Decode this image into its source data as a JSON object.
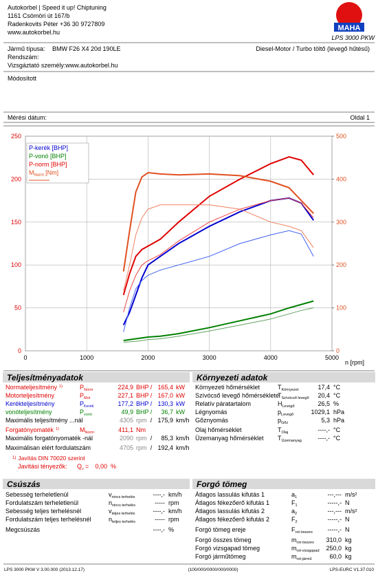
{
  "header": {
    "company": "Autokorbel | Speed it up! Chiptuning",
    "address": "1161 Csömöri út 167/b",
    "contact": "Radenkovits Péter +36 30 9727809",
    "web": "www.autokorbel.hu",
    "logo": "MAHA",
    "model": "LPS 3000 PKW"
  },
  "vehicle": {
    "type_label": "Jármű típusa:",
    "type": "BMW F26 X4 20d 190LE",
    "engine": "Diesel-Motor / Turbo töltő (levegő hűtésű)",
    "plate_label": "Rendszám:",
    "examiner": "Vizsgáztató személy:www.autokorbel.hu",
    "note": "Módosított",
    "date_label": "Mérési dátum:",
    "page": "Oldal 1"
  },
  "chart_data": {
    "type": "line",
    "x_label": "n [rpm]",
    "xlim": [
      0,
      5000
    ],
    "xticks": [
      0,
      1000,
      2000,
      3000,
      4000,
      5000
    ],
    "ylim": [
      0,
      250
    ],
    "yticks": [
      0,
      50,
      100,
      150,
      200,
      250
    ],
    "y2lim": [
      0,
      500
    ],
    "y2ticks": [
      0,
      100,
      200,
      300,
      400,
      500
    ],
    "ytick_color": "#e00000",
    "y2tick_color": "#e05020",
    "grid": true,
    "legend": "top-left",
    "x": [
      1600,
      1700,
      1800,
      1900,
      2000,
      2200,
      2500,
      3000,
      3500,
      4000,
      4300,
      4500,
      4700
    ],
    "series": [
      {
        "name": "P-kerék [BHP]",
        "color": "#0000d0",
        "width": 2,
        "values": [
          30,
          45,
          65,
          85,
          100,
          110,
          125,
          145,
          162,
          175,
          178,
          172,
          152
        ]
      },
      {
        "name": "P-vonó [BHP]",
        "color": "#008000",
        "width": 2,
        "values": [
          12,
          13,
          14,
          15,
          16,
          17,
          20,
          27,
          35,
          43,
          50,
          54,
          58
        ]
      },
      {
        "name": "P-norm [BHP]",
        "color": "#e00000",
        "width": 2,
        "values": [
          65,
          90,
          110,
          118,
          122,
          130,
          150,
          180,
          200,
          218,
          226,
          222,
          205
        ]
      },
      {
        "name": "M",
        "name_sub": "Norm",
        "name_unit": "[Nm]",
        "color": "#e05020",
        "width": 2,
        "axis": "y2",
        "values": [
          185,
          280,
          370,
          405,
          415,
          412,
          410,
          412,
          408,
          395,
          380,
          350,
          320
        ]
      },
      {
        "color": "#4060f0",
        "width": 1,
        "values": [
          22,
          50,
          72,
          82,
          88,
          94,
          100,
          110,
          125,
          135,
          140,
          136,
          110
        ]
      },
      {
        "color": "#60a060",
        "width": 1,
        "values": [
          10,
          10.5,
          11,
          12,
          13,
          14,
          17,
          23,
          30,
          37,
          43,
          47,
          50
        ]
      },
      {
        "color": "#f04040",
        "width": 1,
        "values": [
          45,
          70,
          88,
          100,
          105,
          112,
          128,
          150,
          165,
          175,
          178,
          172,
          155
        ]
      },
      {
        "color": "#f08060",
        "width": 1,
        "axis": "y2",
        "values": [
          140,
          200,
          270,
          310,
          330,
          340,
          340,
          340,
          330,
          300,
          290,
          280,
          240
        ]
      }
    ]
  },
  "performance": {
    "title": "Teljesítményadatok",
    "rows": [
      {
        "label": "Normateljesítmény",
        "note": "1)",
        "sym": "P",
        "sub": "Norm",
        "val": "224,9",
        "unit": "BHP",
        "sep": "/",
        "val2": "165,4",
        "unit2": "kW",
        "color": "#e00000"
      },
      {
        "label": "Motorteljesítmény",
        "sym": "P",
        "sub": "Mot",
        "val": "227,1",
        "unit": "BHP",
        "sep": "/",
        "val2": "167,0",
        "unit2": "kW",
        "color": "#e00000"
      },
      {
        "label": "Kerékteljesítmény",
        "sym": "P",
        "sub": "Kerék",
        "val": "177,2",
        "unit": "BHP",
        "sep": "/",
        "val2": "130,3",
        "unit2": "kW",
        "color": "#0000d0"
      },
      {
        "label": "vonóteljesítmény",
        "sym": "P",
        "sub": "vonó",
        "val": "49,9",
        "unit": "BHP",
        "sep": "/",
        "val2": "36,7",
        "unit2": "kW",
        "color": "#008000"
      },
      {
        "label": "Maximális teljesítmény ...nál",
        "val": "4305",
        "unit": "rpm",
        "sep": "/",
        "val2": "175,9",
        "unit2": "km/h",
        "val_color": "#888"
      },
      {
        "label": "Forgatónyomaték",
        "note": "1)",
        "sym": "M",
        "sub": "Norm",
        "val": "411,1",
        "unit": "Nm",
        "color": "#e00000"
      },
      {
        "label": "Maximális forgatónyomaték -nál",
        "val": "2090",
        "unit": "rpm",
        "sep": "/",
        "val2": "85,3",
        "unit2": "km/h",
        "val_color": "#888"
      },
      {
        "label": "Maximálisan elért fordulatszám",
        "val": "4705",
        "unit": "rpm",
        "sep": "/",
        "val2": "192,4",
        "unit2": "km/h",
        "val_color": "#888"
      }
    ],
    "footnote": {
      "note": "1)",
      "text": "Javítás DIN 70020 szerint"
    },
    "factor": {
      "label": "Javítási tényezők:",
      "sym": "Q",
      "sub": "v",
      "eq": "=",
      "val": "0,00",
      "unit": "%"
    }
  },
  "environment": {
    "title": "Környezeti adatok",
    "rows": [
      {
        "label": "Környezeti hőmérséklet",
        "sym": "T",
        "sub": "Környezet",
        "val": "17,4",
        "unit": "°C"
      },
      {
        "label": "Szívócső levegő hőmérséklete",
        "sym": "T",
        "sub": "Szívócső levegő",
        "val": "20,4",
        "unit": "°C"
      },
      {
        "label": "Relatív páratartalom",
        "sym": "H",
        "sub": "Levegő",
        "val": "26,5",
        "unit": "%"
      },
      {
        "label": "Légnyomás",
        "sym": "p",
        "sub": "Levegő",
        "val": "1029,1",
        "unit": "hPa"
      },
      {
        "label": "Gőznyomás",
        "sym": "p",
        "sub": "Gőz",
        "val": "5,3",
        "unit": "hPa"
      },
      {
        "label": "Olaj hőmérséklet",
        "sym": "T",
        "sub": "Olaj",
        "val": "----,-",
        "unit": "°C"
      },
      {
        "label": "Üzemanyag hőmérséklet",
        "sym": "T",
        "sub": "Üzemanyag",
        "val": "----,-",
        "unit": "°C"
      }
    ]
  },
  "slip": {
    "title": "Csúszás",
    "rows": [
      {
        "label": "Sebesség terheletlenül",
        "sym": "v",
        "sub": "nincs terhelés",
        "val": "----,-",
        "unit": "km/h"
      },
      {
        "label": "Fordulatszám terheletlenül",
        "sym": "n",
        "sub": "nincs terhelés",
        "val": "-----",
        "unit": "rpm"
      },
      {
        "label": "Sebesség teljes terhelésnél",
        "sym": "v",
        "sub": "teljes terhelés",
        "val": "----,-",
        "unit": "km/h"
      },
      {
        "label": "Fordulatszám teljes terhelésnél",
        "sym": "n",
        "sub": "teljes terhelés",
        "val": "-----",
        "unit": "rpm"
      },
      {
        "label": "Megcsúszás",
        "val": "----,-",
        "unit": "%"
      }
    ]
  },
  "rotating": {
    "title": "Forgó tömeg",
    "rows": [
      {
        "label": "Átlagos lassulás kifutás 1",
        "sym": "a",
        "sub": "1",
        "val": "---,---",
        "unit": "m/s²"
      },
      {
        "label": "Átlagos fékezőerő kifutás 1",
        "sym": "F",
        "sub": "1",
        "val": "-----,-",
        "unit": "N"
      },
      {
        "label": "Átlagos lassulás kifutás 2",
        "sym": "a",
        "sub": "2",
        "val": "---,---",
        "unit": "m/s²"
      },
      {
        "label": "Átlagos fékezőerő kifutás 2",
        "sym": "F",
        "sub": "2",
        "val": "-----,-",
        "unit": "N"
      },
      {
        "label": "Forgó tömeg ereje",
        "sym": "F",
        "sub": "rot-összes",
        "val": "-----,-",
        "unit": "N"
      },
      {
        "label": "Forgó összes tömeg",
        "sym": "m",
        "sub": "rot-összes",
        "val": "310,0",
        "unit": "kg"
      },
      {
        "label": "Forgó vizsgapad tömeg",
        "sym": "m",
        "sub": "rot-vizsgapad",
        "val": "250,0",
        "unit": "kg"
      },
      {
        "label": "Forgó járműtömeg",
        "sym": "m",
        "sub": "rot-jármű",
        "val": "60,0",
        "unit": "kg"
      }
    ]
  },
  "footer": {
    "left": "LPS 3000 PKW V 3.00.000 (2013.12.17)",
    "center": "(100/000/0000/000/0000)",
    "right": "LPS-EURC V1.37.010"
  }
}
